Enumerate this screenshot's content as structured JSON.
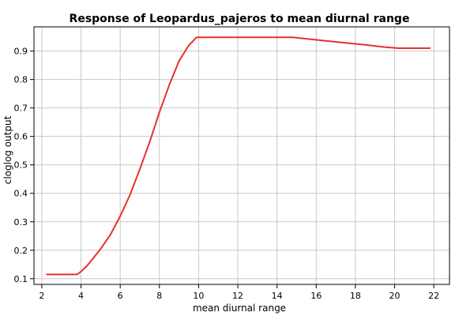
{
  "chart_data": {
    "type": "line",
    "title": "Response of Leopardus_pajeros to mean diurnal range",
    "xlabel": "mean diurnal range",
    "ylabel": "cloglog output",
    "xlim": [
      1.6,
      22.8
    ],
    "ylim": [
      0.08,
      0.985
    ],
    "xticks": [
      2,
      4,
      6,
      8,
      10,
      12,
      14,
      16,
      18,
      20,
      22
    ],
    "yticks": [
      0.1,
      0.2,
      0.3,
      0.4,
      0.5,
      0.6,
      0.7,
      0.8,
      0.9
    ],
    "grid": true,
    "series": [
      {
        "color": "#e8302f",
        "x": [
          2.25,
          3.0,
          3.8,
          4.0,
          4.3,
          4.6,
          5.0,
          5.5,
          6.0,
          6.5,
          7.0,
          7.5,
          8.0,
          8.5,
          9.0,
          9.5,
          9.9,
          10.5,
          12.0,
          13.0,
          14.0,
          14.8,
          15.5,
          16.5,
          17.5,
          18.5,
          19.5,
          20.2,
          21.0,
          21.8
        ],
        "y": [
          0.115,
          0.115,
          0.115,
          0.125,
          0.145,
          0.17,
          0.205,
          0.255,
          0.32,
          0.395,
          0.485,
          0.58,
          0.685,
          0.78,
          0.865,
          0.92,
          0.948,
          0.948,
          0.948,
          0.948,
          0.948,
          0.948,
          0.943,
          0.936,
          0.929,
          0.922,
          0.914,
          0.91,
          0.91,
          0.91
        ]
      }
    ]
  }
}
